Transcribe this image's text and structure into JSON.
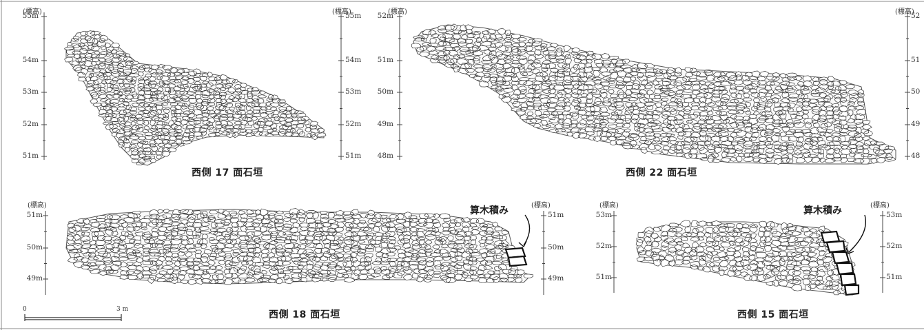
{
  "panels": {
    "p17": {
      "caption": "西側 17 面石垣",
      "left_header": "(標高)",
      "right_header": "(標高)",
      "left_labels": [
        "55m",
        "54m",
        "53m",
        "52m",
        "51m"
      ],
      "right_labels": [
        "55m",
        "54m",
        "53m",
        "52m",
        "51m"
      ]
    },
    "p22": {
      "caption": "西側 22 面石垣",
      "left_header": "(標高)",
      "right_header": "(標高)",
      "left_labels": [
        "52m",
        "51m",
        "50m",
        "49m",
        "48m"
      ],
      "right_labels": [
        "52",
        "51",
        "50",
        "49",
        "48"
      ]
    },
    "p18": {
      "caption": "西側 18 面石垣",
      "left_header": "(標高)",
      "right_header": "(標高)",
      "left_labels": [
        "51m",
        "50m",
        "49m"
      ],
      "right_labels": [
        "51m",
        "50m",
        "49m"
      ],
      "note": "算木積み"
    },
    "p15": {
      "caption": "西側 15 面石垣",
      "left_header": "(標高)",
      "right_header": "(標高)",
      "left_labels": [
        "53m",
        "52m",
        "51m"
      ],
      "right_labels": [
        "53m",
        "52m",
        "51m"
      ],
      "note": "算木積み"
    }
  },
  "scale_bar": {
    "start_label": "0",
    "end_label": "3 m"
  }
}
